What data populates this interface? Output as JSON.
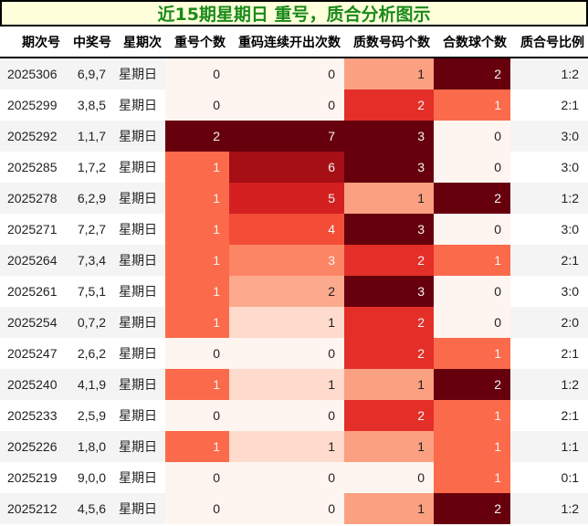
{
  "title": "近15期星期日 重号，质合分析图示",
  "colors": {
    "title_bg": "#ffffdc",
    "title_text": "#1a8a1a",
    "heat_0": "#fff5f0",
    "heat_low": "#fcbba1",
    "heat_mid": "#fc9272",
    "heat_orange": "#fb6a4a",
    "heat_red": "#ef3b2c",
    "heat_deep": "#cb181d",
    "heat_darker": "#a50f15",
    "heat_max": "#67000d"
  },
  "columns": [
    "期次号",
    "中奖号",
    "星期次",
    "重号个数",
    "重码连续开出次数",
    "质数号码个数",
    "合数球个数",
    "质合号比例"
  ],
  "rows": [
    {
      "issue": "2025306",
      "numbers": "6,9,7",
      "weekday": "星期日",
      "repeat": "0",
      "repeat_bg": "#fff5f0",
      "streak": "0",
      "streak_bg": "#fff5f0",
      "prime": "1",
      "prime_bg": "#fca082",
      "composite": "2",
      "composite_bg": "#67000d",
      "ratio": "1:2"
    },
    {
      "issue": "2025299",
      "numbers": "3,8,5",
      "weekday": "星期日",
      "repeat": "0",
      "repeat_bg": "#fff5f0",
      "streak": "0",
      "streak_bg": "#fff5f0",
      "prime": "2",
      "prime_bg": "#e32f27",
      "composite": "1",
      "composite_bg": "#fb6a4a",
      "ratio": "2:1"
    },
    {
      "issue": "2025292",
      "numbers": "1,1,7",
      "weekday": "星期日",
      "repeat": "2",
      "repeat_bg": "#67000d",
      "streak": "7",
      "streak_bg": "#67000d",
      "prime": "3",
      "prime_bg": "#67000d",
      "composite": "0",
      "composite_bg": "#fff5f0",
      "ratio": "3:0"
    },
    {
      "issue": "2025285",
      "numbers": "1,7,2",
      "weekday": "星期日",
      "repeat": "1",
      "repeat_bg": "#fb6a4a",
      "streak": "6",
      "streak_bg": "#a50f15",
      "prime": "3",
      "prime_bg": "#67000d",
      "composite": "0",
      "composite_bg": "#fff5f0",
      "ratio": "3:0"
    },
    {
      "issue": "2025278",
      "numbers": "6,2,9",
      "weekday": "星期日",
      "repeat": "1",
      "repeat_bg": "#fb6a4a",
      "streak": "5",
      "streak_bg": "#d42020",
      "prime": "1",
      "prime_bg": "#fca082",
      "composite": "2",
      "composite_bg": "#67000d",
      "ratio": "1:2"
    },
    {
      "issue": "2025271",
      "numbers": "7,2,7",
      "weekday": "星期日",
      "repeat": "1",
      "repeat_bg": "#fb6a4a",
      "streak": "4",
      "streak_bg": "#f34c37",
      "prime": "3",
      "prime_bg": "#67000d",
      "composite": "0",
      "composite_bg": "#fff5f0",
      "ratio": "3:0"
    },
    {
      "issue": "2025264",
      "numbers": "7,3,4",
      "weekday": "星期日",
      "repeat": "1",
      "repeat_bg": "#fb6a4a",
      "streak": "3",
      "streak_bg": "#fc8565",
      "prime": "2",
      "prime_bg": "#e32f27",
      "composite": "1",
      "composite_bg": "#fb6a4a",
      "ratio": "2:1"
    },
    {
      "issue": "2025261",
      "numbers": "7,5,1",
      "weekday": "星期日",
      "repeat": "1",
      "repeat_bg": "#fb6a4a",
      "streak": "2",
      "streak_bg": "#fcaa8d",
      "prime": "3",
      "prime_bg": "#67000d",
      "composite": "0",
      "composite_bg": "#fff5f0",
      "ratio": "3:0"
    },
    {
      "issue": "2025254",
      "numbers": "0,7,2",
      "weekday": "星期日",
      "repeat": "1",
      "repeat_bg": "#fb6a4a",
      "streak": "1",
      "streak_bg": "#fedbcc",
      "prime": "2",
      "prime_bg": "#e32f27",
      "composite": "0",
      "composite_bg": "#fff5f0",
      "ratio": "2:0"
    },
    {
      "issue": "2025247",
      "numbers": "2,6,2",
      "weekday": "星期日",
      "repeat": "0",
      "repeat_bg": "#fff5f0",
      "streak": "0",
      "streak_bg": "#fff5f0",
      "prime": "2",
      "prime_bg": "#e32f27",
      "composite": "1",
      "composite_bg": "#fb6a4a",
      "ratio": "2:1"
    },
    {
      "issue": "2025240",
      "numbers": "4,1,9",
      "weekday": "星期日",
      "repeat": "1",
      "repeat_bg": "#fb6a4a",
      "streak": "1",
      "streak_bg": "#fedbcc",
      "prime": "1",
      "prime_bg": "#fca082",
      "composite": "2",
      "composite_bg": "#67000d",
      "ratio": "1:2"
    },
    {
      "issue": "2025233",
      "numbers": "2,5,9",
      "weekday": "星期日",
      "repeat": "0",
      "repeat_bg": "#fff5f0",
      "streak": "0",
      "streak_bg": "#fff5f0",
      "prime": "2",
      "prime_bg": "#e32f27",
      "composite": "1",
      "composite_bg": "#fb6a4a",
      "ratio": "2:1"
    },
    {
      "issue": "2025226",
      "numbers": "1,8,0",
      "weekday": "星期日",
      "repeat": "1",
      "repeat_bg": "#fb6a4a",
      "streak": "1",
      "streak_bg": "#fedbcc",
      "prime": "1",
      "prime_bg": "#fca082",
      "composite": "1",
      "composite_bg": "#fb6a4a",
      "ratio": "1:1"
    },
    {
      "issue": "2025219",
      "numbers": "9,0,0",
      "weekday": "星期日",
      "repeat": "0",
      "repeat_bg": "#fff5f0",
      "streak": "0",
      "streak_bg": "#fff5f0",
      "prime": "0",
      "prime_bg": "#fff5f0",
      "composite": "1",
      "composite_bg": "#fb6a4a",
      "ratio": "0:1"
    },
    {
      "issue": "2025212",
      "numbers": "4,5,6",
      "weekday": "星期日",
      "repeat": "0",
      "repeat_bg": "#fff5f0",
      "streak": "0",
      "streak_bg": "#fff5f0",
      "prime": "1",
      "prime_bg": "#fca082",
      "composite": "2",
      "composite_bg": "#67000d",
      "ratio": "1:2"
    }
  ]
}
